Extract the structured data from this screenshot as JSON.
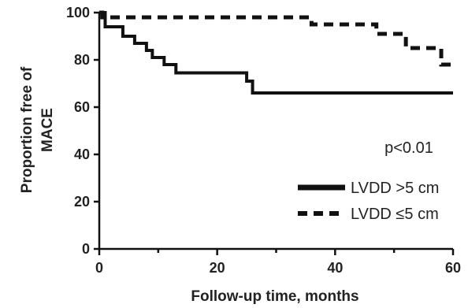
{
  "chart_data": {
    "type": "line",
    "step": true,
    "title": "",
    "xlabel": "Follow-up time, months",
    "ylabel_lines": [
      "Proportion  free of",
      "MACE"
    ],
    "xlim": [
      0,
      60
    ],
    "ylim": [
      0,
      100
    ],
    "xticks": [
      "0",
      "20",
      "40",
      "60"
    ],
    "yticks": [
      "0",
      "20",
      "40",
      "60",
      "80",
      "100"
    ],
    "grid": false,
    "legend_position": "bottom-right",
    "annotation": "p<0.01",
    "series": [
      {
        "name": "LVDD >5 cm",
        "style": "solid",
        "color": "#111111",
        "points": [
          [
            0,
            100
          ],
          [
            1,
            94
          ],
          [
            4,
            90
          ],
          [
            6,
            87
          ],
          [
            8,
            84
          ],
          [
            9,
            81
          ],
          [
            11,
            78
          ],
          [
            13,
            74.5
          ],
          [
            25,
            71
          ],
          [
            26,
            66
          ],
          [
            60,
            66
          ]
        ]
      },
      {
        "name": "LVDD ≤5 cm",
        "style": "dashed",
        "color": "#111111",
        "points": [
          [
            0,
            100
          ],
          [
            0.5,
            98
          ],
          [
            36,
            95
          ],
          [
            47,
            91
          ],
          [
            52,
            85
          ],
          [
            58,
            78
          ],
          [
            60,
            78
          ]
        ]
      }
    ]
  }
}
